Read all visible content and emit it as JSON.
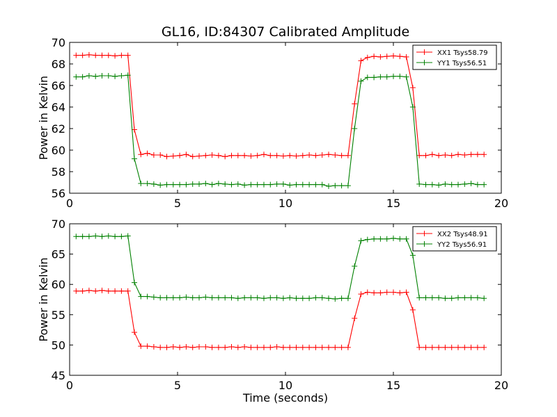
{
  "figure": {
    "title": "GL16, ID:84307 Calibrated Amplitude",
    "xlabel": "Time (seconds)"
  },
  "chart_data": [
    {
      "type": "line",
      "title": "GL16, ID:84307 Calibrated Amplitude",
      "xlabel": "",
      "ylabel": "Power in Kelvin",
      "xlim": [
        0,
        20
      ],
      "ylim": [
        56,
        70
      ],
      "xticks": [
        0,
        5,
        10,
        15,
        20
      ],
      "yticks": [
        56,
        58,
        60,
        62,
        64,
        66,
        68,
        70
      ],
      "grid": false,
      "legend_position": "top-right",
      "series": [
        {
          "name": "XX1 Tsys58.79",
          "color": "#ff0000",
          "x": [
            0.3,
            0.6,
            0.9,
            1.2,
            1.5,
            1.8,
            2.1,
            2.4,
            2.7,
            3.0,
            3.3,
            3.6,
            3.9,
            4.2,
            4.5,
            4.8,
            5.1,
            5.4,
            5.7,
            6.0,
            6.3,
            6.6,
            6.9,
            7.2,
            7.5,
            7.8,
            8.1,
            8.4,
            8.7,
            9.0,
            9.3,
            9.6,
            9.9,
            10.2,
            10.5,
            10.8,
            11.1,
            11.4,
            11.7,
            12.0,
            12.3,
            12.6,
            12.9,
            13.2,
            13.5,
            13.8,
            14.1,
            14.4,
            14.7,
            15.0,
            15.3,
            15.6,
            15.9,
            16.2,
            16.5,
            16.8,
            17.1,
            17.4,
            17.7,
            18.0,
            18.3,
            18.6,
            18.9,
            19.2
          ],
          "y": [
            68.8,
            68.8,
            68.85,
            68.8,
            68.8,
            68.8,
            68.75,
            68.8,
            68.8,
            61.9,
            59.6,
            59.7,
            59.55,
            59.55,
            59.4,
            59.45,
            59.5,
            59.6,
            59.4,
            59.45,
            59.5,
            59.55,
            59.5,
            59.4,
            59.5,
            59.5,
            59.5,
            59.45,
            59.5,
            59.6,
            59.5,
            59.5,
            59.45,
            59.5,
            59.45,
            59.5,
            59.55,
            59.5,
            59.55,
            59.6,
            59.55,
            59.5,
            59.5,
            64.3,
            68.3,
            68.6,
            68.7,
            68.65,
            68.7,
            68.75,
            68.7,
            68.65,
            65.8,
            59.5,
            59.5,
            59.6,
            59.5,
            59.55,
            59.5,
            59.6,
            59.55,
            59.6,
            59.6,
            59.6
          ]
        },
        {
          "name": "YY1 Tsys56.51",
          "color": "#008000",
          "x": [
            0.3,
            0.6,
            0.9,
            1.2,
            1.5,
            1.8,
            2.1,
            2.4,
            2.7,
            3.0,
            3.3,
            3.6,
            3.9,
            4.2,
            4.5,
            4.8,
            5.1,
            5.4,
            5.7,
            6.0,
            6.3,
            6.6,
            6.9,
            7.2,
            7.5,
            7.8,
            8.1,
            8.4,
            8.7,
            9.0,
            9.3,
            9.6,
            9.9,
            10.2,
            10.5,
            10.8,
            11.1,
            11.4,
            11.7,
            12.0,
            12.3,
            12.6,
            12.9,
            13.2,
            13.5,
            13.8,
            14.1,
            14.4,
            14.7,
            15.0,
            15.3,
            15.6,
            15.9,
            16.2,
            16.5,
            16.8,
            17.1,
            17.4,
            17.7,
            18.0,
            18.3,
            18.6,
            18.9,
            19.2
          ],
          "y": [
            66.8,
            66.8,
            66.9,
            66.85,
            66.9,
            66.9,
            66.85,
            66.9,
            66.95,
            59.2,
            56.9,
            56.9,
            56.85,
            56.75,
            56.8,
            56.8,
            56.8,
            56.8,
            56.85,
            56.85,
            56.9,
            56.8,
            56.9,
            56.85,
            56.8,
            56.85,
            56.75,
            56.8,
            56.8,
            56.8,
            56.8,
            56.85,
            56.85,
            56.75,
            56.8,
            56.8,
            56.8,
            56.8,
            56.8,
            56.65,
            56.7,
            56.7,
            56.7,
            62.0,
            66.4,
            66.75,
            66.75,
            66.8,
            66.8,
            66.85,
            66.85,
            66.8,
            64.0,
            56.85,
            56.8,
            56.8,
            56.75,
            56.85,
            56.8,
            56.8,
            56.85,
            56.9,
            56.8,
            56.8
          ]
        }
      ]
    },
    {
      "type": "line",
      "title": "",
      "xlabel": "Time (seconds)",
      "ylabel": "Power in Kelvin",
      "xlim": [
        0,
        20
      ],
      "ylim": [
        45,
        70
      ],
      "xticks": [
        0,
        5,
        10,
        15,
        20
      ],
      "yticks": [
        45,
        50,
        55,
        60,
        65,
        70
      ],
      "grid": false,
      "legend_position": "top-right",
      "series": [
        {
          "name": "XX2 Tsys48.91",
          "color": "#ff0000",
          "x": [
            0.3,
            0.6,
            0.9,
            1.2,
            1.5,
            1.8,
            2.1,
            2.4,
            2.7,
            3.0,
            3.3,
            3.6,
            3.9,
            4.2,
            4.5,
            4.8,
            5.1,
            5.4,
            5.7,
            6.0,
            6.3,
            6.6,
            6.9,
            7.2,
            7.5,
            7.8,
            8.1,
            8.4,
            8.7,
            9.0,
            9.3,
            9.6,
            9.9,
            10.2,
            10.5,
            10.8,
            11.1,
            11.4,
            11.7,
            12.0,
            12.3,
            12.6,
            12.9,
            13.2,
            13.5,
            13.8,
            14.1,
            14.4,
            14.7,
            15.0,
            15.3,
            15.6,
            15.9,
            16.2,
            16.5,
            16.8,
            17.1,
            17.4,
            17.7,
            18.0,
            18.3,
            18.6,
            18.9,
            19.2
          ],
          "y": [
            58.9,
            58.9,
            59.0,
            58.9,
            59.0,
            58.9,
            58.9,
            58.9,
            58.9,
            52.1,
            49.8,
            49.8,
            49.7,
            49.6,
            49.6,
            49.7,
            49.6,
            49.7,
            49.6,
            49.7,
            49.7,
            49.6,
            49.6,
            49.6,
            49.7,
            49.6,
            49.7,
            49.6,
            49.6,
            49.6,
            49.6,
            49.7,
            49.6,
            49.6,
            49.6,
            49.6,
            49.6,
            49.6,
            49.6,
            49.6,
            49.6,
            49.6,
            49.6,
            54.4,
            58.4,
            58.7,
            58.6,
            58.6,
            58.7,
            58.7,
            58.6,
            58.7,
            55.8,
            49.6,
            49.6,
            49.6,
            49.6,
            49.6,
            49.6,
            49.6,
            49.6,
            49.6,
            49.6,
            49.6
          ]
        },
        {
          "name": "YY2 Tsys56.91",
          "color": "#008000",
          "x": [
            0.3,
            0.6,
            0.9,
            1.2,
            1.5,
            1.8,
            2.1,
            2.4,
            2.7,
            3.0,
            3.3,
            3.6,
            3.9,
            4.2,
            4.5,
            4.8,
            5.1,
            5.4,
            5.7,
            6.0,
            6.3,
            6.6,
            6.9,
            7.2,
            7.5,
            7.8,
            8.1,
            8.4,
            8.7,
            9.0,
            9.3,
            9.6,
            9.9,
            10.2,
            10.5,
            10.8,
            11.1,
            11.4,
            11.7,
            12.0,
            12.3,
            12.6,
            12.9,
            13.2,
            13.5,
            13.8,
            14.1,
            14.4,
            14.7,
            15.0,
            15.3,
            15.6,
            15.9,
            16.2,
            16.5,
            16.8,
            17.1,
            17.4,
            17.7,
            18.0,
            18.3,
            18.6,
            18.9,
            19.2
          ],
          "y": [
            67.9,
            67.9,
            67.9,
            68.0,
            67.9,
            68.0,
            67.9,
            67.9,
            68.0,
            60.3,
            58.0,
            58.0,
            57.9,
            57.8,
            57.8,
            57.8,
            57.8,
            57.9,
            57.8,
            57.8,
            57.9,
            57.8,
            57.8,
            57.8,
            57.8,
            57.7,
            57.8,
            57.8,
            57.8,
            57.7,
            57.8,
            57.8,
            57.7,
            57.8,
            57.7,
            57.7,
            57.7,
            57.8,
            57.8,
            57.7,
            57.6,
            57.7,
            57.7,
            63.0,
            67.2,
            67.4,
            67.5,
            67.5,
            67.5,
            67.6,
            67.5,
            67.5,
            64.8,
            57.8,
            57.8,
            57.8,
            57.8,
            57.7,
            57.7,
            57.8,
            57.8,
            57.8,
            57.8,
            57.7
          ]
        }
      ]
    }
  ]
}
